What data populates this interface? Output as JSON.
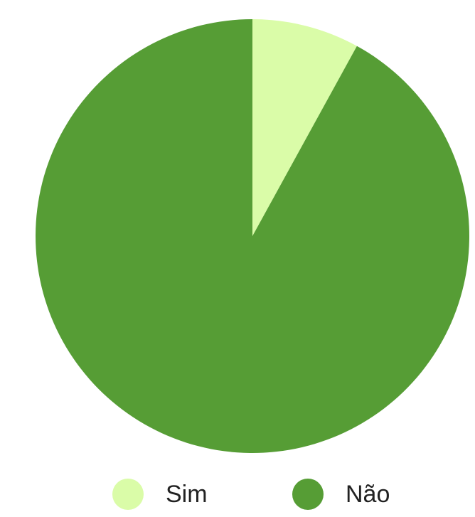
{
  "chart_data": {
    "type": "pie",
    "categories": [
      "Sim",
      "Não"
    ],
    "values": [
      8,
      92
    ],
    "colors": [
      "#dafca8",
      "#569d35"
    ],
    "legend": "bottom"
  }
}
